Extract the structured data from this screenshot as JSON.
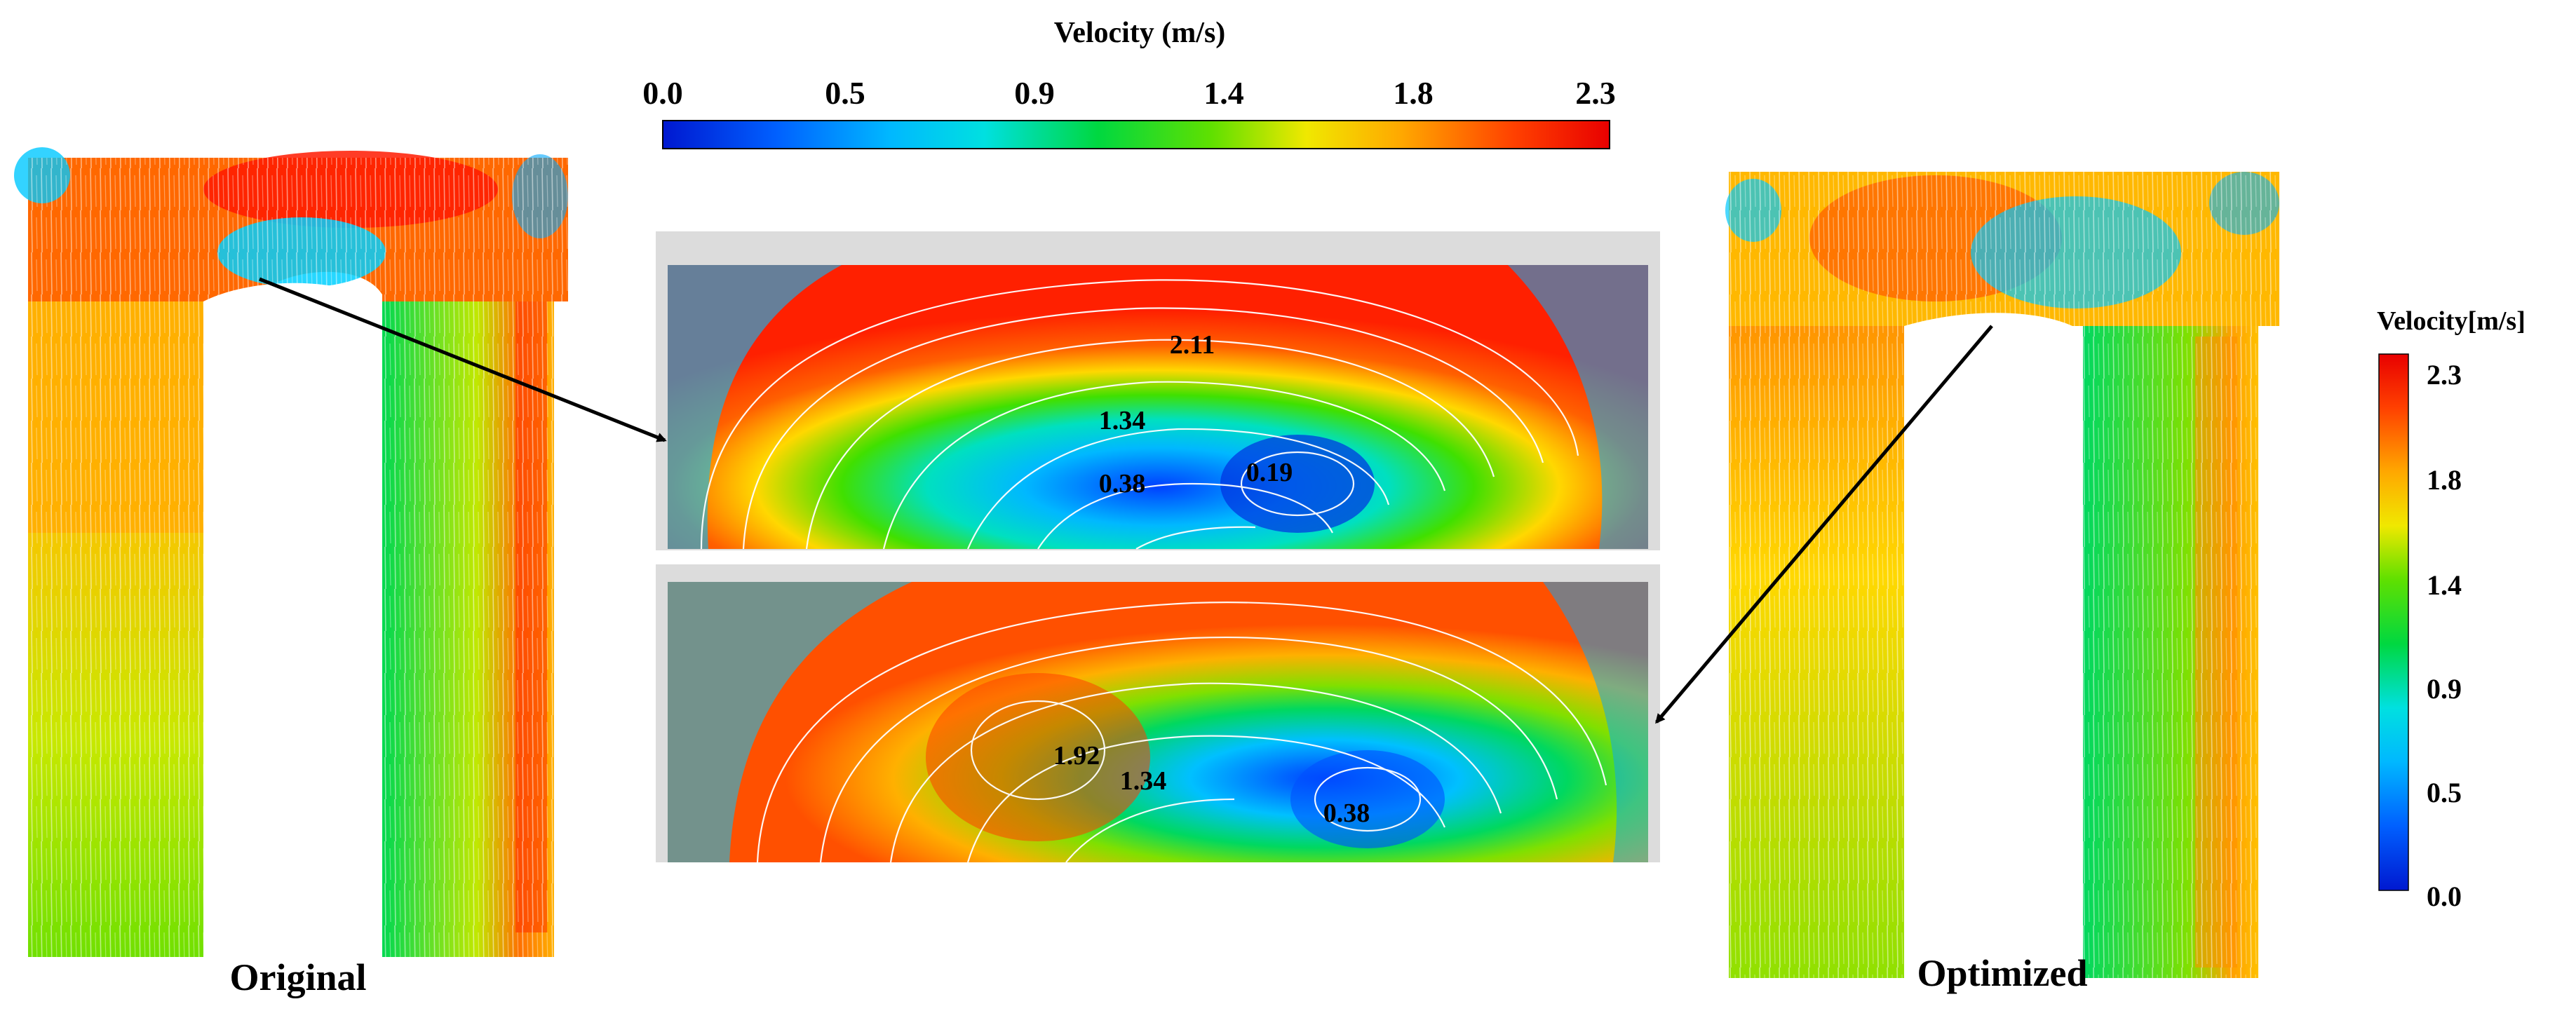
{
  "top_colorbar": {
    "title": "Velocity (m/s)",
    "ticks": [
      "0.0",
      "0.5",
      "0.9",
      "1.4",
      "1.8",
      "2.3"
    ]
  },
  "side_colorbar": {
    "title": "Velocity[m/s]",
    "ticks": [
      "2.3",
      "1.8",
      "1.4",
      "0.9",
      "0.5",
      "0.0"
    ]
  },
  "colors": {
    "scale": [
      "#0018d0",
      "#0050ff",
      "#0090ff",
      "#00d0f0",
      "#00e0a0",
      "#00d040",
      "#40e000",
      "#b0e800",
      "#ffe000",
      "#ffa000",
      "#ff6000",
      "#ff2000",
      "#e80000"
    ]
  },
  "panels": {
    "original": {
      "label": "Original"
    },
    "optimized": {
      "label": "Optimized"
    }
  },
  "zoom_top": {
    "contour_labels": [
      "2.11",
      "1.34",
      "0.38",
      "0.19"
    ]
  },
  "zoom_bottom": {
    "contour_labels": [
      "1.92",
      "1.34",
      "0.38"
    ]
  }
}
